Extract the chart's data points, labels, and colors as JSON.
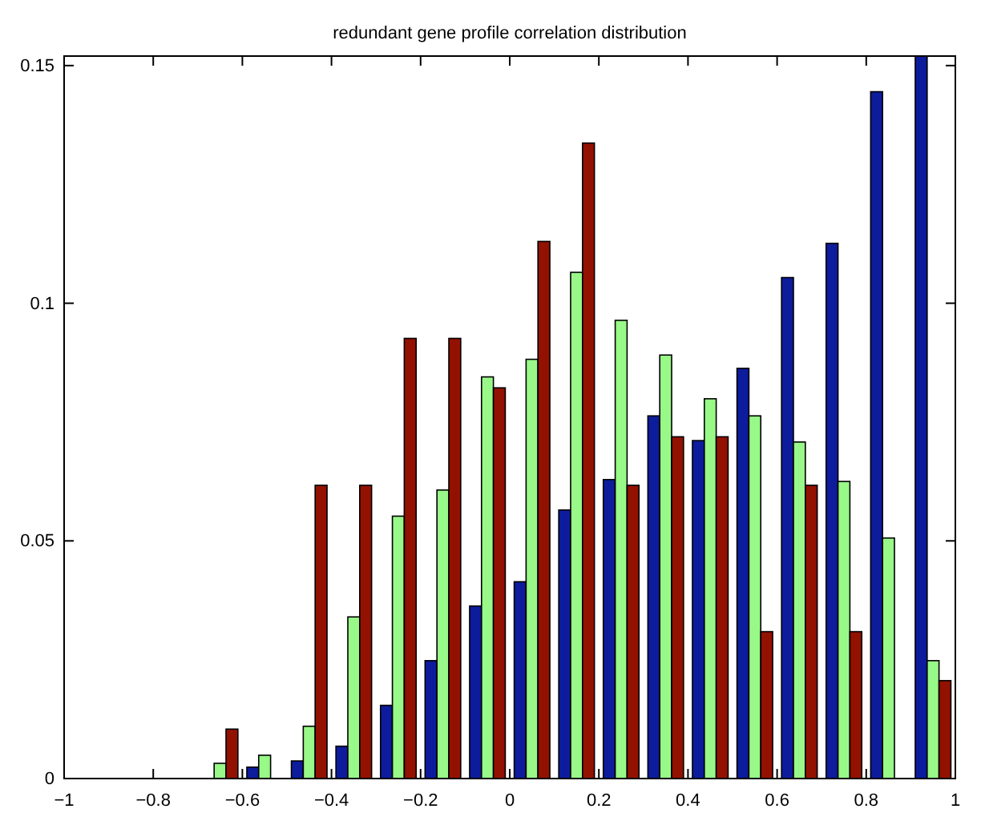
{
  "chart_data": {
    "type": "bar",
    "title": "redundant gene profile correlation distribution",
    "x": [
      -0.95,
      -0.85,
      -0.75,
      -0.65,
      -0.55,
      -0.45,
      -0.35,
      -0.25,
      -0.15,
      -0.05,
      0.05,
      0.15,
      0.25,
      0.35,
      0.45,
      0.55,
      0.65,
      0.75,
      0.85,
      0.95
    ],
    "series": [
      {
        "color": "#0c1c9c",
        "values": [
          0,
          0,
          0,
          0,
          0.0024,
          0.0037,
          0.0068,
          0.0154,
          0.0248,
          0.0363,
          0.0414,
          0.0565,
          0.0629,
          0.0763,
          0.0711,
          0.0863,
          0.1054,
          0.1126,
          0.1445,
          0.152
        ]
      },
      {
        "color": "#98f888",
        "values": [
          0,
          0,
          0,
          0.0032,
          0.0049,
          0.011,
          0.034,
          0.0552,
          0.0607,
          0.0845,
          0.0882,
          0.1065,
          0.0964,
          0.0891,
          0.0799,
          0.0763,
          0.0708,
          0.0625,
          0.0506,
          0.0248
        ]
      },
      {
        "color": "#931100",
        "values": [
          0,
          0,
          0,
          0.0104,
          0,
          0.0617,
          0.0617,
          0.0926,
          0.0926,
          0.0822,
          0.113,
          0.1337,
          0.0617,
          0.0719,
          0.0719,
          0.0309,
          0.0617,
          0.0309,
          0,
          0.0206
        ]
      }
    ],
    "xlim": [
      -1,
      1
    ],
    "xticks": [
      {
        "value": -1,
        "label": "−1"
      },
      {
        "value": -0.8,
        "label": "−0.8"
      },
      {
        "value": -0.6,
        "label": "−0.6"
      },
      {
        "value": -0.4,
        "label": "−0.4"
      },
      {
        "value": -0.2,
        "label": "−0.2"
      },
      0,
      0.2,
      0.4,
      0.6,
      0.8,
      1
    ],
    "ylim": [
      0,
      0.152
    ],
    "yticks": [
      0,
      0.05,
      0.1,
      0.15
    ]
  }
}
